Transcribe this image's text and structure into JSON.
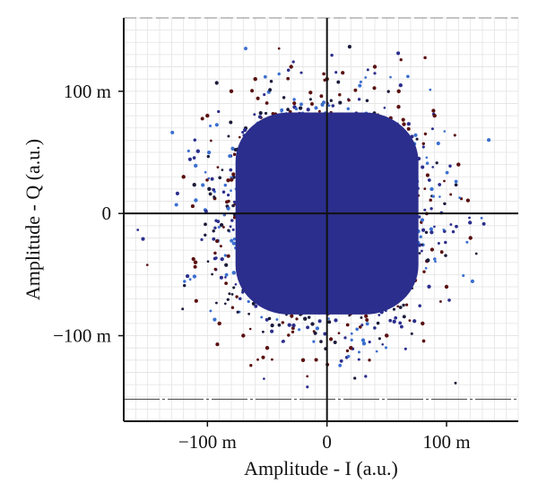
{
  "chart_data": {
    "type": "scatter",
    "title": "",
    "xlabel": "Amplitude - I (a.u.)",
    "ylabel": "Amplitude - Q (a.u.)",
    "xlim": [
      -0.17,
      0.16
    ],
    "ylim": [
      -0.17,
      0.16
    ],
    "x_ticks": [
      {
        "value": -0.1,
        "label": "−100 m"
      },
      {
        "value": 0,
        "label": "0"
      },
      {
        "value": 0.1,
        "label": "100 m"
      }
    ],
    "y_ticks": [
      {
        "value": 0.1,
        "label": "100 m"
      },
      {
        "value": 0,
        "label": "0"
      },
      {
        "value": -0.1,
        "label": "−100 m"
      }
    ],
    "grid": true,
    "reference_lines": {
      "x": 0,
      "y": 0
    },
    "dashed_line_y": -0.152,
    "legend": "none",
    "colors": {
      "core": "#2b2e8c",
      "scatter_primary": "#2b2e8c",
      "scatter_secondary": "#5a1010",
      "scatter_tertiary": "#3b6fd0",
      "axis": "#111111",
      "grid": "#e3e3e3"
    },
    "series": [
      {
        "values": [
          [
            -0.12,
            0.03
          ],
          [
            -0.11,
            -0.04
          ],
          [
            -0.1,
            0.08
          ],
          [
            -0.09,
            -0.09
          ],
          [
            -0.08,
            0.1
          ],
          [
            -0.07,
            -0.1
          ],
          [
            -0.06,
            0.11
          ],
          [
            -0.05,
            -0.11
          ],
          [
            -0.03,
            0.12
          ],
          [
            -0.02,
            -0.12
          ],
          [
            0.0,
            0.11
          ],
          [
            0.02,
            -0.11
          ],
          [
            0.04,
            0.12
          ],
          [
            0.05,
            -0.1
          ],
          [
            0.06,
            0.1
          ],
          [
            0.08,
            -0.09
          ],
          [
            0.09,
            0.08
          ],
          [
            0.1,
            -0.06
          ],
          [
            0.11,
            0.04
          ],
          [
            0.12,
            -0.02
          ],
          [
            -0.05,
            0.03
          ],
          [
            0.02,
            0.05
          ],
          [
            0.04,
            -0.04
          ],
          [
            -0.03,
            -0.05
          ],
          [
            0.0,
            0.0
          ]
        ],
        "distribution": {
          "center": [
            0.0,
            0.0
          ],
          "core_extent": [
            -0.09,
            0.09
          ],
          "spread_extent": [
            -0.16,
            0.155
          ]
        }
      }
    ]
  }
}
